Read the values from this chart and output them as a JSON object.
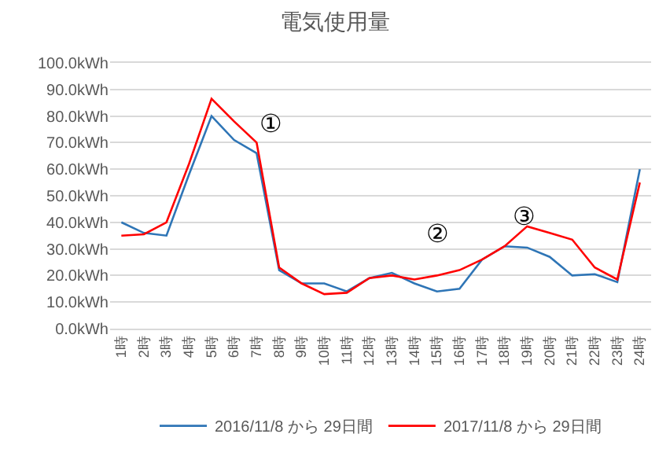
{
  "chart_data": {
    "type": "line",
    "title": "電気使用量",
    "categories": [
      "1時",
      "2時",
      "3時",
      "4時",
      "5時",
      "6時",
      "7時",
      "8時",
      "9時",
      "10時",
      "11時",
      "12時",
      "13時",
      "14時",
      "15時",
      "16時",
      "17時",
      "18時",
      "19時",
      "20時",
      "21時",
      "22時",
      "23時",
      "24時"
    ],
    "series": [
      {
        "name": "2016/11/8 から 29日間",
        "color": "#2e75b6",
        "values": [
          40,
          36,
          35,
          58,
          80,
          71,
          66,
          22,
          17,
          17,
          14,
          19,
          21,
          17,
          14,
          15,
          26,
          31,
          30.5,
          27,
          20,
          20.5,
          17.5,
          60
        ]
      },
      {
        "name": "2017/11/8 から 29日間",
        "color": "#ff0000",
        "values": [
          35,
          35.5,
          40,
          62,
          86.5,
          78,
          70,
          23,
          17,
          13,
          13.5,
          19,
          20,
          18.5,
          20,
          22,
          26,
          31,
          38.5,
          36,
          33.5,
          23,
          18.5,
          55
        ]
      }
    ],
    "ylim": [
      0,
      100
    ],
    "yticks": [
      {
        "value": 0,
        "label": "0.0kWh"
      },
      {
        "value": 10,
        "label": "10.0kWh"
      },
      {
        "value": 20,
        "label": "20.0kWh"
      },
      {
        "value": 30,
        "label": "30.0kWh"
      },
      {
        "value": 40,
        "label": "40.0kWh"
      },
      {
        "value": 50,
        "label": "50.0kWh"
      },
      {
        "value": 60,
        "label": "60.0kWh"
      },
      {
        "value": 70,
        "label": "70.0kWh"
      },
      {
        "value": 80,
        "label": "80.0kWh"
      },
      {
        "value": 90,
        "label": "90.0kWh"
      },
      {
        "value": 100,
        "label": "100.0kWh"
      }
    ],
    "annotations": [
      "①",
      "②",
      "③"
    ],
    "grid": "y",
    "legend": "bottom",
    "marker": "none",
    "line_style": "solid"
  }
}
